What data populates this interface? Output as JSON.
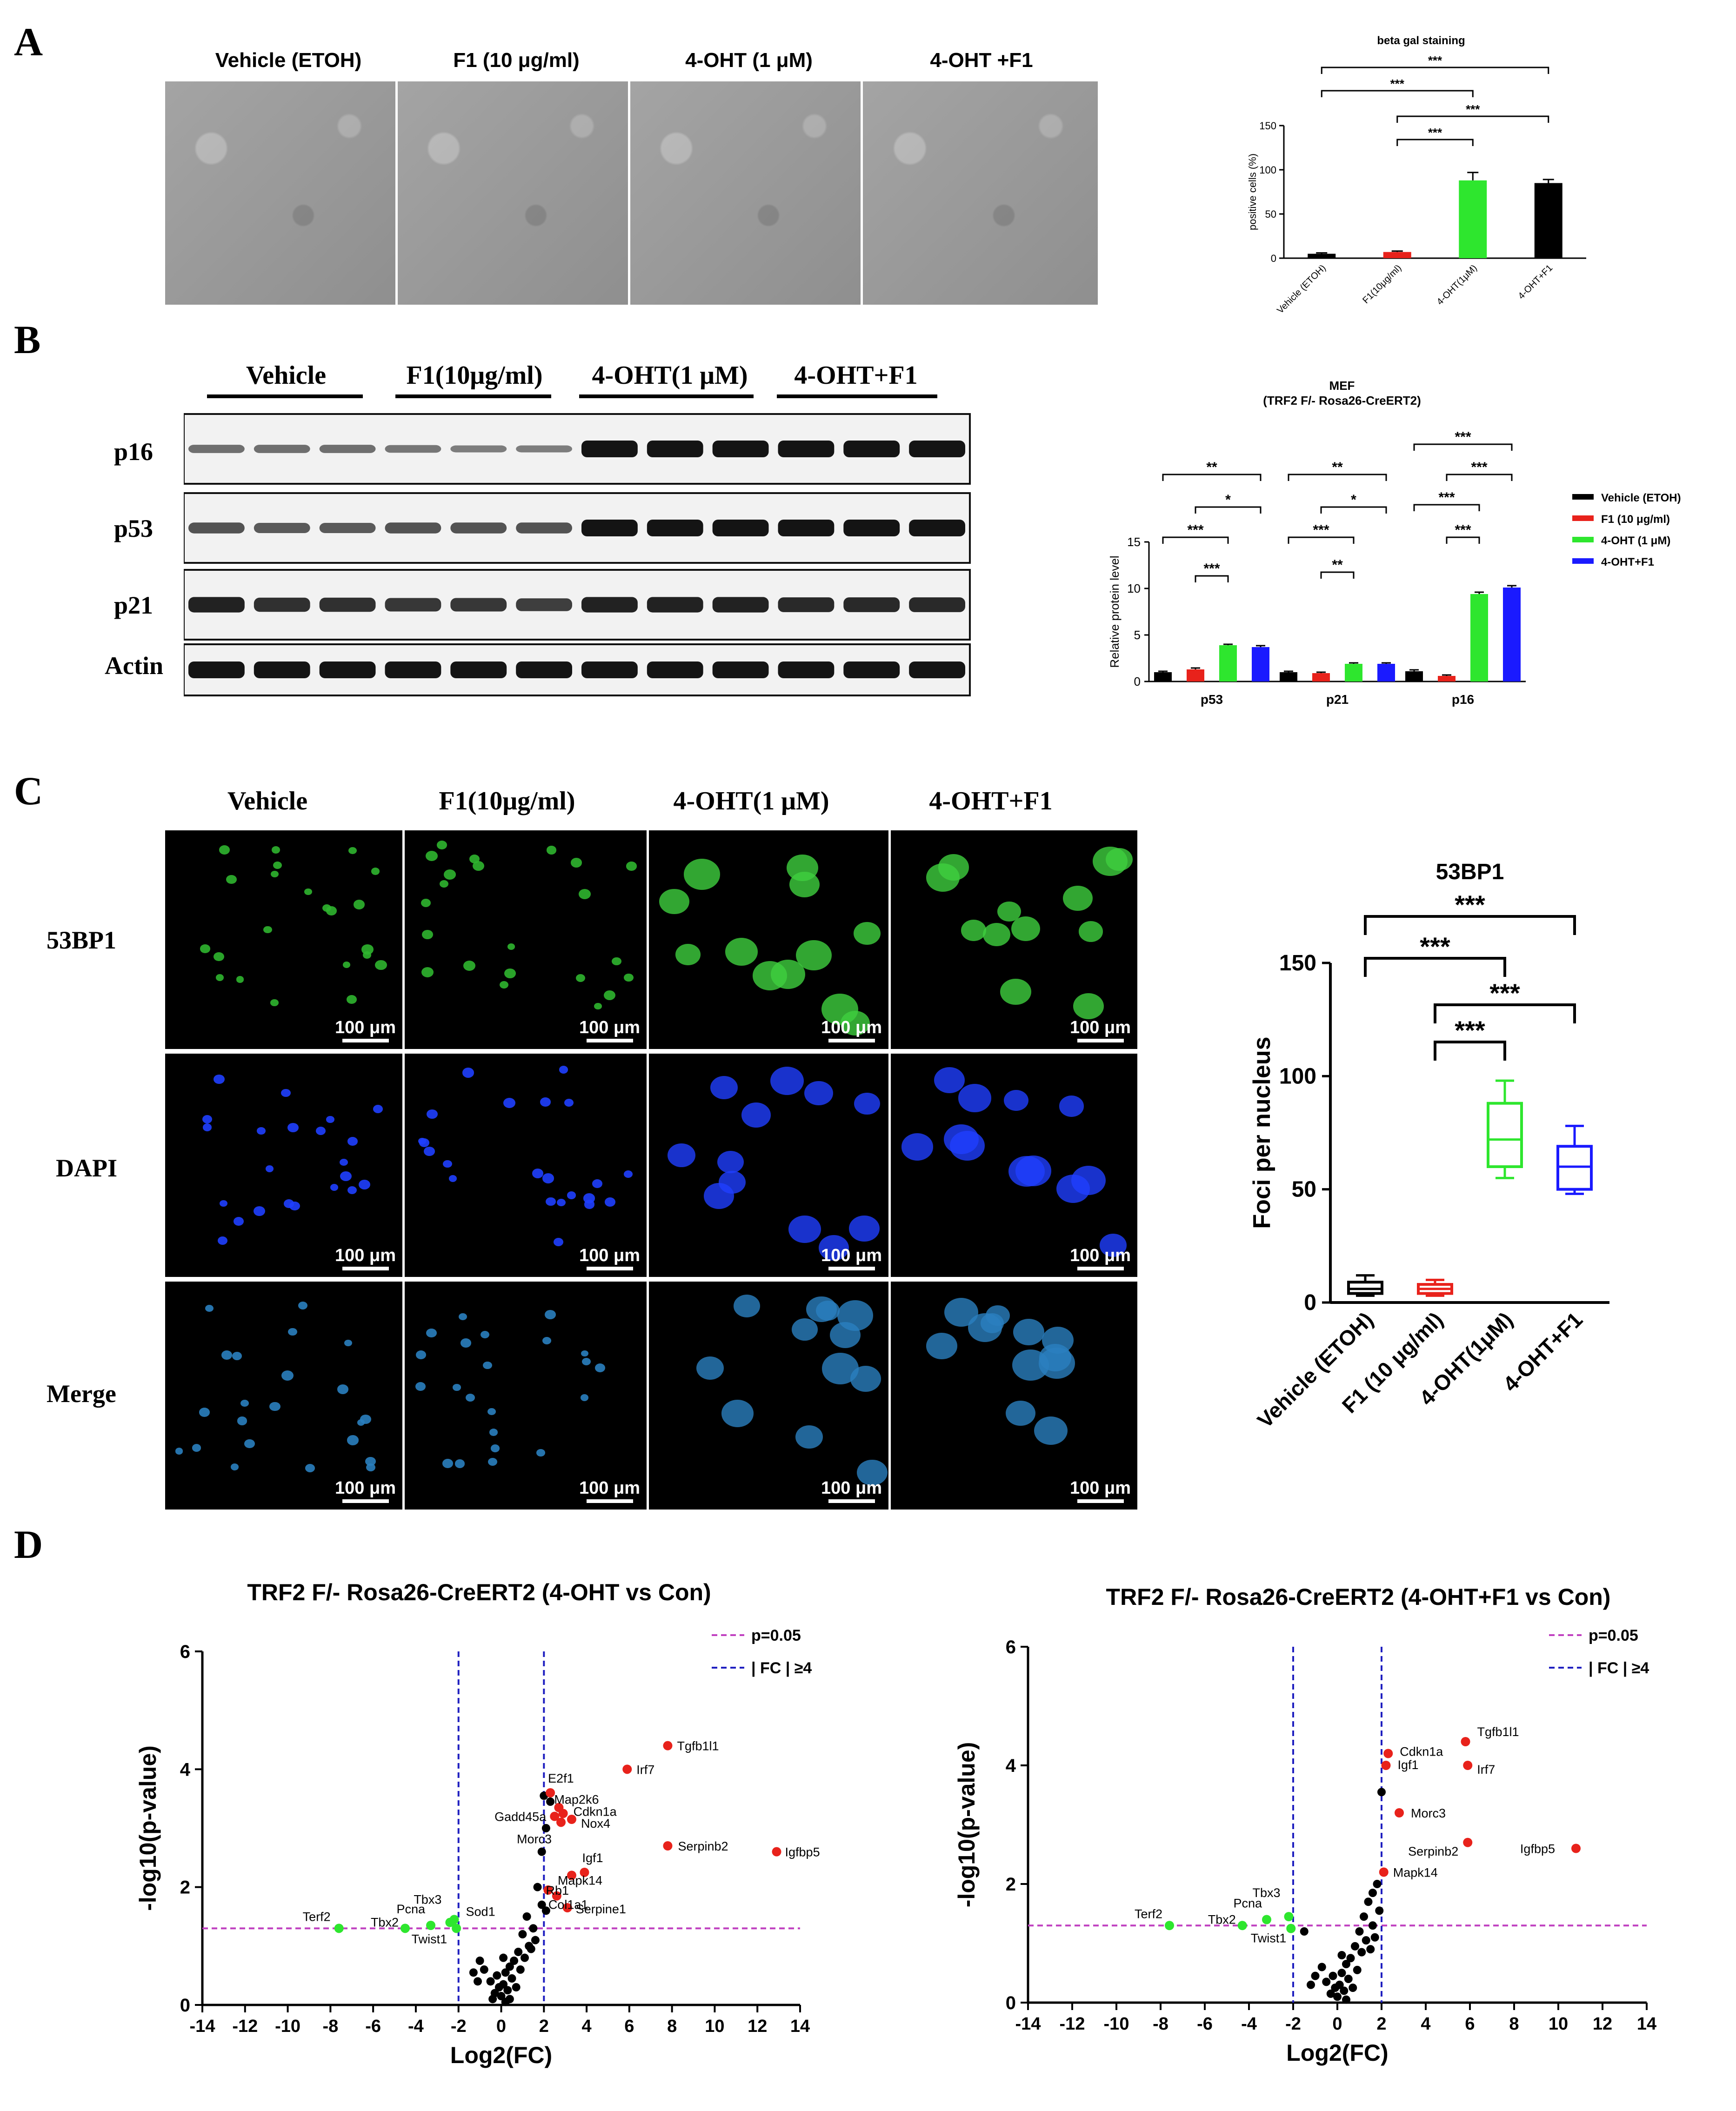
{
  "panels": {
    "A": {
      "letter": "A",
      "columns": [
        "Vehicle (ETOH)",
        "F1 (10 μg/ml)",
        "4-OHT (1 μM)",
        "4-OHT +F1"
      ]
    },
    "B": {
      "letter": "B",
      "columns": [
        "Vehicle",
        "F1(10μg/ml)",
        "4-OHT(1 μM)",
        "4-OHT+F1"
      ],
      "rows": [
        "p16",
        "p53",
        "p21",
        "Actin"
      ]
    },
    "C": {
      "letter": "C",
      "columns": [
        "Vehicle",
        "F1(10μg/ml)",
        "4-OHT(1 μM)",
        "4-OHT+F1"
      ],
      "rows": [
        "53BP1",
        "DAPI",
        "Merge"
      ],
      "scale_label": "100 μm"
    },
    "D": {
      "letter": "D"
    }
  },
  "chart_data": [
    {
      "id": "beta-gal",
      "type": "bar",
      "title": "beta gal staining",
      "ylabel": "positive cells (%)",
      "xlabel": "",
      "categories": [
        "Vehicle (ETOH)",
        "F1(10μg/ml)",
        "4-OHT(1μM)",
        "4-OHT+F1"
      ],
      "values": [
        5,
        7,
        88,
        85
      ],
      "errors": [
        1,
        1,
        9,
        4
      ],
      "colors": [
        "#000000",
        "#e8221b",
        "#2ee62e",
        "#000000"
      ],
      "ylim": [
        0,
        150
      ],
      "yticks": [
        0,
        50,
        100,
        150
      ],
      "significance": [
        {
          "from": 0,
          "to": 3,
          "label": "***"
        },
        {
          "from": 0,
          "to": 2,
          "label": "***"
        },
        {
          "from": 1,
          "to": 3,
          "label": "***"
        },
        {
          "from": 1,
          "to": 2,
          "label": "***"
        }
      ]
    },
    {
      "id": "protein-level",
      "type": "bar",
      "title": "MEF",
      "subtitle": "(TRF2 F/- Rosa26-CreERT2)",
      "ylabel": "Relative protein level",
      "xlabel": "",
      "categories": [
        "p53",
        "p21",
        "p16"
      ],
      "series": [
        {
          "name": "Vehicle (ETOH)",
          "color": "#000000",
          "values": [
            1,
            1,
            1.1
          ],
          "errors": [
            0.1,
            0.1,
            0.15
          ]
        },
        {
          "name": "F1 (10 μg/ml)",
          "color": "#e8221b",
          "values": [
            1.3,
            0.9,
            0.6
          ],
          "errors": [
            0.15,
            0.1,
            0.1
          ]
        },
        {
          "name": "4-OHT (1 μM)",
          "color": "#2ee62e",
          "values": [
            3.9,
            1.9,
            9.4
          ],
          "errors": [
            0.1,
            0.1,
            0.2
          ]
        },
        {
          "name": "4-OHT+F1",
          "color": "#1a1aff",
          "values": [
            3.7,
            1.9,
            10.1
          ],
          "errors": [
            0.15,
            0.1,
            0.2
          ]
        }
      ],
      "ylim": [
        0,
        15
      ],
      "yticks": [
        0,
        5,
        10,
        15
      ],
      "legend": "right",
      "significance": [
        {
          "group": 0,
          "from": 0,
          "to": 3,
          "label": "**"
        },
        {
          "group": 0,
          "from": 1,
          "to": 3,
          "label": "*"
        },
        {
          "group": 0,
          "from": 0,
          "to": 2,
          "label": "***"
        },
        {
          "group": 0,
          "from": 1,
          "to": 2,
          "label": "***"
        },
        {
          "group": 1,
          "from": 0,
          "to": 3,
          "label": "**"
        },
        {
          "group": 1,
          "from": 1,
          "to": 3,
          "label": "*"
        },
        {
          "group": 1,
          "from": 0,
          "to": 2,
          "label": "***"
        },
        {
          "group": 1,
          "from": 1,
          "to": 2,
          "label": "**"
        },
        {
          "group": 2,
          "from": 0,
          "to": 3,
          "label": "***"
        },
        {
          "group": 2,
          "from": 1,
          "to": 3,
          "label": "***"
        },
        {
          "group": 2,
          "from": 0,
          "to": 2,
          "label": "***"
        },
        {
          "group": 2,
          "from": 1,
          "to": 2,
          "label": "***"
        }
      ]
    },
    {
      "id": "foci-boxplot",
      "type": "box",
      "title": "53BP1",
      "ylabel": "Foci per nucleus",
      "xlabel": "",
      "categories": [
        "Vehicle (ETOH)",
        "F1 (10 μg/ml)",
        "4-OHT(1μM)",
        "4-OHT+F1"
      ],
      "colors": [
        "#000000",
        "#e8221b",
        "#2ee62e",
        "#1a1aff"
      ],
      "boxes": [
        {
          "min": 3,
          "q1": 4,
          "median": 6,
          "q3": 9,
          "max": 12
        },
        {
          "min": 3,
          "q1": 4,
          "median": 6,
          "q3": 8,
          "max": 10
        },
        {
          "min": 55,
          "q1": 60,
          "median": 72,
          "q3": 88,
          "max": 98
        },
        {
          "min": 48,
          "q1": 50,
          "median": 60,
          "q3": 69,
          "max": 78
        }
      ],
      "ylim": [
        0,
        150
      ],
      "yticks": [
        0,
        50,
        100,
        150
      ],
      "significance": [
        {
          "from": 0,
          "to": 3,
          "label": "***"
        },
        {
          "from": 0,
          "to": 2,
          "label": "***"
        },
        {
          "from": 1,
          "to": 3,
          "label": "***"
        },
        {
          "from": 1,
          "to": 2,
          "label": "***"
        }
      ]
    },
    {
      "id": "volcano-4oht",
      "type": "scatter",
      "title": "TRF2 F/- Rosa26-CreERT2 (4-OHT vs Con)",
      "xlabel": "Log2(FC)",
      "ylabel": "-log10(p-value)",
      "xlim": [
        -14,
        14
      ],
      "ylim": [
        0,
        6
      ],
      "xticks": [
        -14,
        -12,
        -10,
        -8,
        -6,
        -4,
        -2,
        0,
        2,
        4,
        6,
        8,
        10,
        12,
        14
      ],
      "yticks": [
        0,
        2,
        4,
        6
      ],
      "legend_items": [
        {
          "label": "p=0.05",
          "color": "#c040c0"
        },
        {
          "label": "| FC | ≥4",
          "color": "#2020c0"
        }
      ],
      "pline": 1.3,
      "fclines": [
        -2,
        2
      ],
      "red_points": [
        {
          "x": 7.8,
          "y": 4.4,
          "label": "Tgfb1l1"
        },
        {
          "x": 5.9,
          "y": 4.0,
          "label": "Irf7"
        },
        {
          "x": 2.3,
          "y": 3.6,
          "label": "E2f1"
        },
        {
          "x": 2.7,
          "y": 3.35,
          "label": "Map2k6"
        },
        {
          "x": 2.9,
          "y": 3.25,
          "label": "Cdkn1a"
        },
        {
          "x": 3.3,
          "y": 3.15,
          "label": "Nox4"
        },
        {
          "x": 2.5,
          "y": 3.2,
          "label": "Gadd45a"
        },
        {
          "x": 2.8,
          "y": 3.1,
          "label": "Morc3"
        },
        {
          "x": 7.8,
          "y": 2.7,
          "label": "Serpinb2"
        },
        {
          "x": 12.9,
          "y": 2.6,
          "label": "Igfbp5"
        },
        {
          "x": 3.9,
          "y": 2.25,
          "label": "Igf1"
        },
        {
          "x": 3.3,
          "y": 2.2,
          "label": "Mapk14"
        },
        {
          "x": 2.2,
          "y": 1.95,
          "label": "Rb1"
        },
        {
          "x": 2.6,
          "y": 1.85,
          "label": "Col1a1"
        },
        {
          "x": 3.1,
          "y": 1.65,
          "label": "Serpine1"
        }
      ],
      "green_points": [
        {
          "x": -7.6,
          "y": 1.3,
          "label": "Terf2"
        },
        {
          "x": -4.5,
          "y": 1.3,
          "label": "Tbx2"
        },
        {
          "x": -3.3,
          "y": 1.35,
          "label": "Pcna"
        },
        {
          "x": -2.4,
          "y": 1.4,
          "label": "Tbx3"
        },
        {
          "x": -2.2,
          "y": 1.45,
          "label": "Sod1"
        },
        {
          "x": -2.1,
          "y": 1.3,
          "label": "Twist1"
        }
      ],
      "black_points": [
        {
          "x": 2.0,
          "y": 3.55
        },
        {
          "x": 2.3,
          "y": 3.45
        },
        {
          "x": 2.1,
          "y": 3.0
        },
        {
          "x": 1.9,
          "y": 2.6
        },
        {
          "x": 1.7,
          "y": 2.0
        },
        {
          "x": 1.9,
          "y": 1.7
        },
        {
          "x": 2.1,
          "y": 1.6
        },
        {
          "x": 1.2,
          "y": 1.5
        },
        {
          "x": 1.5,
          "y": 1.3
        },
        {
          "x": 1.0,
          "y": 1.2
        },
        {
          "x": 1.3,
          "y": 1.0
        },
        {
          "x": 0.8,
          "y": 0.9
        },
        {
          "x": 1.1,
          "y": 0.8
        },
        {
          "x": 0.6,
          "y": 0.75
        },
        {
          "x": 0.4,
          "y": 0.65
        },
        {
          "x": 0.9,
          "y": 0.6
        },
        {
          "x": 0.2,
          "y": 0.55
        },
        {
          "x": -0.2,
          "y": 0.5
        },
        {
          "x": 0.5,
          "y": 0.45
        },
        {
          "x": -0.5,
          "y": 0.4
        },
        {
          "x": 0.1,
          "y": 0.35
        },
        {
          "x": -0.1,
          "y": 0.3
        },
        {
          "x": 0.3,
          "y": 0.25
        },
        {
          "x": -0.3,
          "y": 0.2
        },
        {
          "x": 0.0,
          "y": 0.15
        },
        {
          "x": 0.4,
          "y": 0.1
        },
        {
          "x": -0.4,
          "y": 0.1
        },
        {
          "x": 0.2,
          "y": 0.05
        },
        {
          "x": -1.0,
          "y": 0.75
        },
        {
          "x": -1.3,
          "y": 0.55
        },
        {
          "x": -1.1,
          "y": 0.4
        },
        {
          "x": 1.4,
          "y": 0.95
        },
        {
          "x": -0.8,
          "y": 0.6
        },
        {
          "x": 0.7,
          "y": 0.3
        },
        {
          "x": 1.6,
          "y": 1.1
        },
        {
          "x": 0.1,
          "y": 0.8
        }
      ]
    },
    {
      "id": "volcano-4oht-f1",
      "type": "scatter",
      "title": "TRF2 F/- Rosa26-CreERT2 (4-OHT+F1 vs Con)",
      "xlabel": "Log2(FC)",
      "ylabel": "-log10(p-value)",
      "xlim": [
        -14,
        14
      ],
      "ylim": [
        0,
        6
      ],
      "xticks": [
        -14,
        -12,
        -10,
        -8,
        -6,
        -4,
        -2,
        0,
        2,
        4,
        6,
        8,
        10,
        12,
        14
      ],
      "yticks": [
        0,
        2,
        4,
        6
      ],
      "legend_items": [
        {
          "label": "p=0.05",
          "color": "#c040c0"
        },
        {
          "label": "| FC | ≥4",
          "color": "#2020c0"
        }
      ],
      "pline": 1.3,
      "fclines": [
        -2,
        2
      ],
      "red_points": [
        {
          "x": 5.8,
          "y": 4.4,
          "label": "Tgfb1l1"
        },
        {
          "x": 2.3,
          "y": 4.2,
          "label": "Cdkn1a"
        },
        {
          "x": 2.2,
          "y": 4.0,
          "label": "Igf1"
        },
        {
          "x": 5.9,
          "y": 4.0,
          "label": "Irf7"
        },
        {
          "x": 2.8,
          "y": 3.2,
          "label": "Morc3"
        },
        {
          "x": 5.9,
          "y": 2.7,
          "label": "Serpinb2"
        },
        {
          "x": 10.8,
          "y": 2.6,
          "label": "Igfbp5"
        },
        {
          "x": 2.1,
          "y": 2.2,
          "label": "Mapk14"
        }
      ],
      "green_points": [
        {
          "x": -7.6,
          "y": 1.3,
          "label": "Terf2"
        },
        {
          "x": -4.3,
          "y": 1.3,
          "label": "Tbx2"
        },
        {
          "x": -3.2,
          "y": 1.4,
          "label": "Pcna"
        },
        {
          "x": -2.2,
          "y": 1.45,
          "label": "Tbx3"
        },
        {
          "x": -2.1,
          "y": 1.25,
          "label": "Twist1"
        }
      ],
      "black_points": [
        {
          "x": 2.0,
          "y": 3.55
        },
        {
          "x": 1.8,
          "y": 2.0
        },
        {
          "x": 1.6,
          "y": 1.85
        },
        {
          "x": 1.4,
          "y": 1.7
        },
        {
          "x": 1.9,
          "y": 1.55
        },
        {
          "x": 1.2,
          "y": 1.45
        },
        {
          "x": 1.6,
          "y": 1.3
        },
        {
          "x": 1.0,
          "y": 1.2
        },
        {
          "x": 1.3,
          "y": 1.05
        },
        {
          "x": 0.8,
          "y": 0.95
        },
        {
          "x": 1.1,
          "y": 0.85
        },
        {
          "x": 0.6,
          "y": 0.75
        },
        {
          "x": 0.4,
          "y": 0.65
        },
        {
          "x": 0.9,
          "y": 0.55
        },
        {
          "x": 0.2,
          "y": 0.5
        },
        {
          "x": -0.2,
          "y": 0.45
        },
        {
          "x": 0.5,
          "y": 0.4
        },
        {
          "x": -0.5,
          "y": 0.35
        },
        {
          "x": 0.1,
          "y": 0.3
        },
        {
          "x": -0.1,
          "y": 0.25
        },
        {
          "x": 0.3,
          "y": 0.2
        },
        {
          "x": -0.3,
          "y": 0.15
        },
        {
          "x": 0.0,
          "y": 0.1
        },
        {
          "x": 0.4,
          "y": 0.05
        },
        {
          "x": -1.0,
          "y": 0.45
        },
        {
          "x": -1.2,
          "y": 0.3
        },
        {
          "x": -1.5,
          "y": 1.2
        },
        {
          "x": 0.7,
          "y": 0.25
        },
        {
          "x": 1.5,
          "y": 0.9
        },
        {
          "x": 0.2,
          "y": 0.8
        },
        {
          "x": -0.7,
          "y": 0.6
        },
        {
          "x": 1.7,
          "y": 1.1
        }
      ]
    }
  ]
}
